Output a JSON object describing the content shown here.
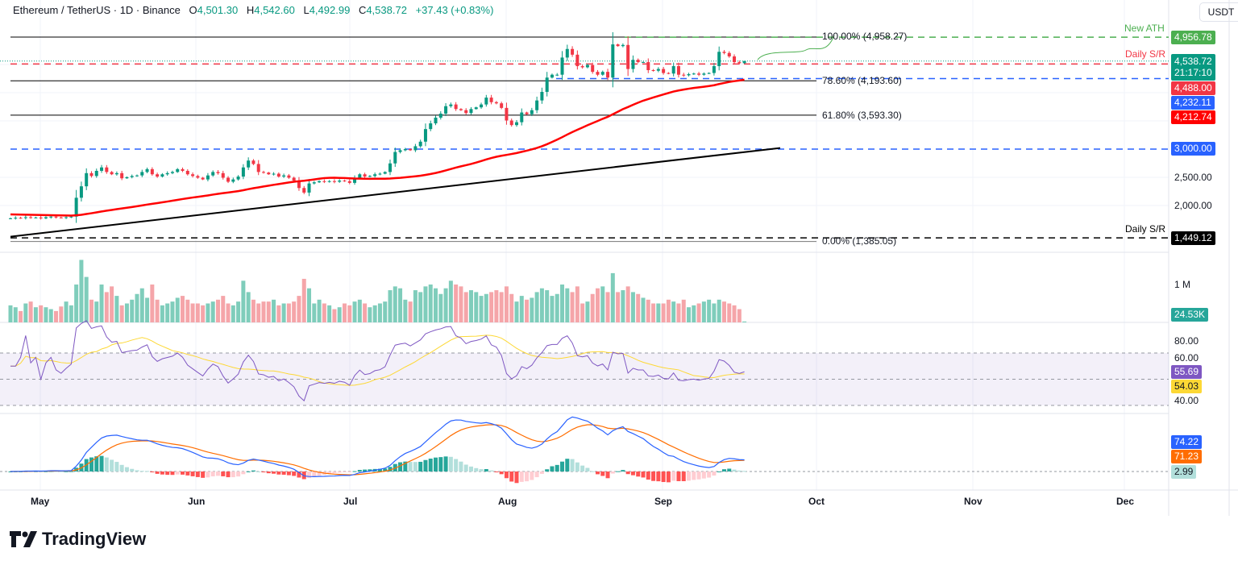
{
  "header": {
    "symbol": "Ethereum / TetherUS · 1D · Binance",
    "open_label": "O",
    "open": "4,501.30",
    "high_label": "H",
    "high": "4,542.60",
    "low_label": "L",
    "low": "4,492.99",
    "close_label": "C",
    "close": "4,538.72",
    "change": "+37.43 (+0.83%)"
  },
  "currency": "USDT",
  "colors": {
    "up": "#089981",
    "down": "#f23645",
    "sma": "#ff0000",
    "rsi": "#7e57c2",
    "rsi_ma": "#fdd835",
    "macd": "#2962ff",
    "signal": "#ff6d00",
    "ath": "#4caf50",
    "support_blue": "#2962ff"
  },
  "price_axis": {
    "ticks": [
      "2,500.00",
      "2,000.00"
    ],
    "labels": {
      "ath": "4,956.78",
      "last": "4,538.72",
      "countdown": "21:17:10",
      "daily_sr_upper": "4,488.00",
      "blue_support": "4,232.11",
      "sma": "4,212.74",
      "blue_3000": "3,000.00",
      "daily_sr_lower": "1,449.12"
    }
  },
  "annotations": {
    "new_ath": "New ATH",
    "daily_sr_upper": "Daily S/R",
    "daily_sr_lower": "Daily S/R",
    "fib_100": "100.00% (4,958.27)",
    "fib_786": "78.60% (4,193.60)",
    "fib_618": "61.80% (3,593.30)",
    "fib_0": "0.00% (1,385.05)"
  },
  "volume_axis": {
    "tick": "1 M",
    "last": "24.53K"
  },
  "rsi_axis": {
    "ticks": [
      "80.00",
      "60.00",
      "40.00"
    ],
    "rsi": "55.69",
    "rsi_ma": "54.03"
  },
  "macd_axis": {
    "macd": "74.22",
    "signal": "71.23",
    "histogram": "2.99"
  },
  "time_axis": [
    "May",
    "Jun",
    "Jul",
    "Aug",
    "Sep",
    "Oct",
    "Nov",
    "Dec"
  ],
  "brand": "TradingView",
  "chart_data": {
    "type": "candlestick",
    "interval": "1D",
    "start_date": "2025-04-25",
    "end_date": "2025-09-17",
    "last_candle": {
      "open": 4501.3,
      "high": 4542.6,
      "low": 4492.99,
      "close": 4538.72
    },
    "closes": [
      1790,
      1800,
      1795,
      1810,
      1800,
      1805,
      1790,
      1810,
      1820,
      1805,
      1800,
      1810,
      1820,
      2150,
      2350,
      2580,
      2530,
      2620,
      2680,
      2600,
      2560,
      2580,
      2490,
      2510,
      2530,
      2540,
      2600,
      2650,
      2560,
      2520,
      2560,
      2580,
      2600,
      2650,
      2620,
      2560,
      2530,
      2500,
      2470,
      2540,
      2600,
      2580,
      2500,
      2430,
      2470,
      2520,
      2680,
      2800,
      2740,
      2600,
      2590,
      2560,
      2570,
      2520,
      2540,
      2500,
      2450,
      2320,
      2240,
      2400,
      2420,
      2440,
      2430,
      2440,
      2430,
      2450,
      2440,
      2410,
      2500,
      2560,
      2520,
      2530,
      2560,
      2570,
      2600,
      2750,
      2950,
      2980,
      3000,
      2980,
      3050,
      3130,
      3350,
      3450,
      3550,
      3620,
      3750,
      3780,
      3700,
      3680,
      3630,
      3700,
      3730,
      3780,
      3900,
      3820,
      3800,
      3720,
      3500,
      3420,
      3470,
      3640,
      3610,
      3680,
      3850,
      4000,
      4250,
      4300,
      4300,
      4600,
      4750,
      4650,
      4450,
      4430,
      4470,
      4350,
      4300,
      4350,
      4250,
      4830,
      4800,
      4820,
      4400,
      4560,
      4520,
      4520,
      4380,
      4370,
      4400,
      4330,
      4320,
      4450,
      4300,
      4290,
      4310,
      4320,
      4300,
      4320,
      4330,
      4450,
      4700,
      4680,
      4620,
      4520,
      4501.3,
      4538.72
    ],
    "volume_millions": [
      0.45,
      0.4,
      0.3,
      0.5,
      0.55,
      0.4,
      0.45,
      0.4,
      0.35,
      0.3,
      0.42,
      0.55,
      0.45,
      1.0,
      1.65,
      1.2,
      0.6,
      0.55,
      1.0,
      0.8,
      0.95,
      0.7,
      0.45,
      0.5,
      0.6,
      0.75,
      0.9,
      0.65,
      1.0,
      0.6,
      0.45,
      0.5,
      0.55,
      0.65,
      0.7,
      0.6,
      0.5,
      0.5,
      0.45,
      0.5,
      0.55,
      0.6,
      0.7,
      0.5,
      0.45,
      0.55,
      1.1,
      0.8,
      0.6,
      0.5,
      0.55,
      0.55,
      0.6,
      0.45,
      0.5,
      0.5,
      0.55,
      0.7,
      1.15,
      0.9,
      0.5,
      0.6,
      0.5,
      0.45,
      0.35,
      0.4,
      0.5,
      0.45,
      0.55,
      0.6,
      0.5,
      0.4,
      0.45,
      0.5,
      0.55,
      0.85,
      0.95,
      0.9,
      0.6,
      0.55,
      0.85,
      0.8,
      0.95,
      1.0,
      0.9,
      0.75,
      0.9,
      1.1,
      1.0,
      0.95,
      0.8,
      0.85,
      0.8,
      0.7,
      0.75,
      0.8,
      0.85,
      0.8,
      0.95,
      0.75,
      0.55,
      0.7,
      0.6,
      0.65,
      0.8,
      0.9,
      0.85,
      0.7,
      0.75,
      1.0,
      0.9,
      0.8,
      0.95,
      0.5,
      0.55,
      0.75,
      0.9,
      0.95,
      0.8,
      1.3,
      0.8,
      0.85,
      0.95,
      0.8,
      0.75,
      0.65,
      0.6,
      0.5,
      0.5,
      0.5,
      0.6,
      0.55,
      0.5,
      0.6,
      0.4,
      0.45,
      0.5,
      0.55,
      0.6,
      0.5,
      0.6,
      0.55,
      0.5,
      0.45,
      0.35,
      0.02453
    ],
    "indicators": {
      "sma_50_last": 4212.74,
      "rsi_14_last": 55.69,
      "rsi_ma_last": 54.03,
      "rsi_bands": [
        70,
        50,
        30
      ],
      "macd_last": 74.22,
      "signal_last": 71.23,
      "histogram_last": 2.99
    },
    "levels": [
      {
        "name": "Fib 100%",
        "value": 4958.27
      },
      {
        "name": "New ATH",
        "value": 4956.78
      },
      {
        "name": "Daily S/R",
        "value": 4488.0
      },
      {
        "name": "Support",
        "value": 4232.11
      },
      {
        "name": "Fib 78.6%",
        "value": 4193.6
      },
      {
        "name": "Fib 61.8%",
        "value": 3593.3
      },
      {
        "name": "Support",
        "value": 3000.0
      },
      {
        "name": "Daily S/R",
        "value": 1449.12
      },
      {
        "name": "Fib 0%",
        "value": 1385.05
      }
    ],
    "trendline": {
      "from": {
        "date": "2025-04-25",
        "price": 1470
      },
      "to": {
        "date": "2025-09-24",
        "price": 3020
      }
    }
  }
}
